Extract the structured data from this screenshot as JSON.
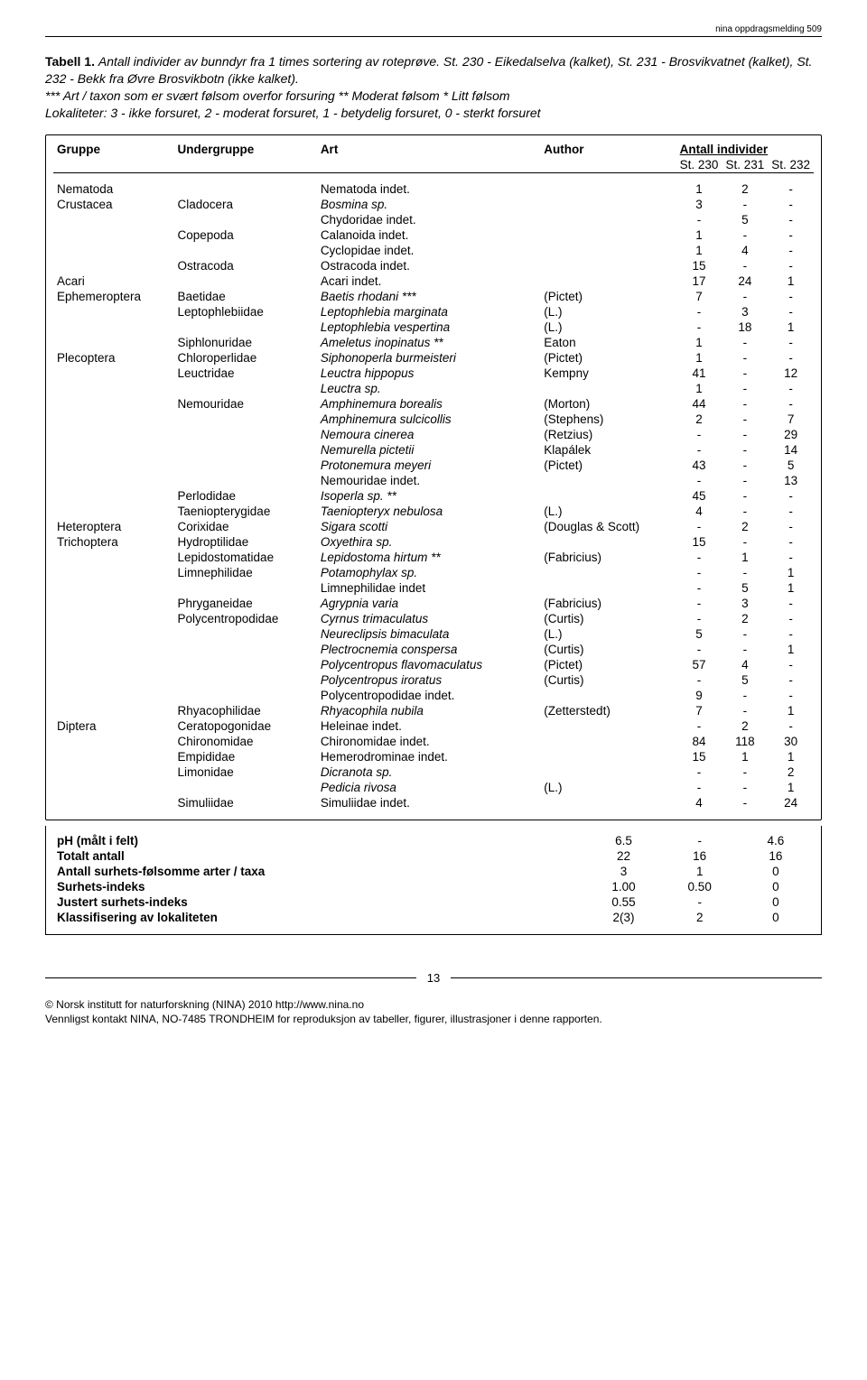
{
  "report_id": "nina oppdragsmelding 509",
  "caption": {
    "label": "Tabell 1.",
    "text_italic": "Antall individer av bunndyr fra 1 times sortering av roteprøve. St. 230 - Eikedalselva (kalket), St. 231 - Brosvikvatnet (kalket), St. 232 - Bekk fra Øvre Brosvikbotn (ikke kalket).",
    "note_italic": "*** Art / taxon som er svært følsom overfor forsuring  ** Moderat følsom  * Litt følsom",
    "loc_italic": "Lokaliteter: 3 - ikke forsuret, 2 - moderat forsuret, 1 - betydelig forsuret, 0 - sterkt forsuret"
  },
  "headers": {
    "gruppe": "Gruppe",
    "undergruppe": "Undergruppe",
    "art": "Art",
    "author": "Author",
    "antall": "Antall individer",
    "st230": "St. 230",
    "st231": "St. 231",
    "st232": "St. 232"
  },
  "rows": [
    {
      "g": "Nematoda",
      "u": "",
      "a": "Nematoda indet.",
      "ai": false,
      "au": "",
      "v": [
        "1",
        "2",
        "-"
      ]
    },
    {
      "g": "Crustacea",
      "u": "Cladocera",
      "a": "Bosmina sp.",
      "ai": true,
      "au": "",
      "v": [
        "3",
        "-",
        "-"
      ]
    },
    {
      "g": "",
      "u": "",
      "a": "Chydoridae indet.",
      "ai": false,
      "au": "",
      "v": [
        "-",
        "5",
        "-"
      ]
    },
    {
      "g": "",
      "u": "Copepoda",
      "a": "Calanoida indet.",
      "ai": false,
      "au": "",
      "v": [
        "1",
        "-",
        "-"
      ]
    },
    {
      "g": "",
      "u": "",
      "a": "Cyclopidae indet.",
      "ai": false,
      "au": "",
      "v": [
        "1",
        "4",
        "-"
      ]
    },
    {
      "g": "",
      "u": "Ostracoda",
      "a": "Ostracoda indet.",
      "ai": false,
      "au": "",
      "v": [
        "15",
        "-",
        "-"
      ]
    },
    {
      "g": "Acari",
      "u": "",
      "a": "Acari indet.",
      "ai": false,
      "au": "",
      "v": [
        "17",
        "24",
        "1"
      ]
    },
    {
      "g": "Ephemeroptera",
      "u": "Baetidae",
      "a": "Baetis rhodani ***",
      "ai": true,
      "au": "(Pictet)",
      "v": [
        "7",
        "-",
        "-"
      ]
    },
    {
      "g": "",
      "u": "Leptophlebiidae",
      "a": "Leptophlebia marginata",
      "ai": true,
      "au": "(L.)",
      "v": [
        "-",
        "3",
        "-"
      ]
    },
    {
      "g": "",
      "u": "",
      "a": "Leptophlebia vespertina",
      "ai": true,
      "au": "(L.)",
      "v": [
        "-",
        "18",
        "1"
      ]
    },
    {
      "g": "",
      "u": "Siphlonuridae",
      "a": "Ameletus inopinatus **",
      "ai": true,
      "au": "Eaton",
      "v": [
        "1",
        "-",
        "-"
      ]
    },
    {
      "g": "Plecoptera",
      "u": "Chloroperlidae",
      "a": "Siphonoperla burmeisteri",
      "ai": true,
      "au": "(Pictet)",
      "v": [
        "1",
        "-",
        "-"
      ]
    },
    {
      "g": "",
      "u": "Leuctridae",
      "a": "Leuctra hippopus",
      "ai": true,
      "au": "Kempny",
      "v": [
        "41",
        "-",
        "12"
      ]
    },
    {
      "g": "",
      "u": "",
      "a": "Leuctra sp.",
      "ai": true,
      "au": "",
      "v": [
        "1",
        "-",
        "-"
      ]
    },
    {
      "g": "",
      "u": "Nemouridae",
      "a": "Amphinemura borealis",
      "ai": true,
      "au": "(Morton)",
      "v": [
        "44",
        "-",
        "-"
      ]
    },
    {
      "g": "",
      "u": "",
      "a": "Amphinemura sulcicollis",
      "ai": true,
      "au": "(Stephens)",
      "v": [
        "2",
        "-",
        "7"
      ]
    },
    {
      "g": "",
      "u": "",
      "a": "Nemoura cinerea",
      "ai": true,
      "au": "(Retzius)",
      "v": [
        "-",
        "-",
        "29"
      ]
    },
    {
      "g": "",
      "u": "",
      "a": "Nemurella pictetii",
      "ai": true,
      "au": "Klapálek",
      "v": [
        "-",
        "-",
        "14"
      ]
    },
    {
      "g": "",
      "u": "",
      "a": "Protonemura meyeri",
      "ai": true,
      "au": "(Pictet)",
      "v": [
        "43",
        "-",
        "5"
      ]
    },
    {
      "g": "",
      "u": "",
      "a": "Nemouridae indet.",
      "ai": false,
      "au": "",
      "v": [
        "-",
        "-",
        "13"
      ]
    },
    {
      "g": "",
      "u": "Perlodidae",
      "a": "Isoperla sp. **",
      "ai": true,
      "au": "",
      "v": [
        "45",
        "-",
        "-"
      ]
    },
    {
      "g": "",
      "u": "Taeniopterygidae",
      "a": "Taeniopteryx nebulosa",
      "ai": true,
      "au": "(L.)",
      "v": [
        "4",
        "-",
        "-"
      ]
    },
    {
      "g": "Heteroptera",
      "u": "Corixidae",
      "a": "Sigara scotti",
      "ai": true,
      "au": "(Douglas & Scott)",
      "v": [
        "-",
        "2",
        "-"
      ]
    },
    {
      "g": "Trichoptera",
      "u": "Hydroptilidae",
      "a": "Oxyethira sp.",
      "ai": true,
      "au": "",
      "v": [
        "15",
        "-",
        "-"
      ]
    },
    {
      "g": "",
      "u": "Lepidostomatidae",
      "a": "Lepidostoma hirtum **",
      "ai": true,
      "au": "(Fabricius)",
      "v": [
        "-",
        "1",
        "-"
      ]
    },
    {
      "g": "",
      "u": "Limnephilidae",
      "a": "Potamophylax sp.",
      "ai": true,
      "au": "",
      "v": [
        "-",
        "-",
        "1"
      ]
    },
    {
      "g": "",
      "u": "",
      "a": "Limnephilidae indet",
      "ai": false,
      "au": "",
      "v": [
        "-",
        "5",
        "1"
      ]
    },
    {
      "g": "",
      "u": "Phryganeidae",
      "a": "Agrypnia varia",
      "ai": true,
      "au": "(Fabricius)",
      "v": [
        "-",
        "3",
        "-"
      ]
    },
    {
      "g": "",
      "u": "Polycentropodidae",
      "a": "Cyrnus trimaculatus",
      "ai": true,
      "au": "(Curtis)",
      "v": [
        "-",
        "2",
        "-"
      ]
    },
    {
      "g": "",
      "u": "",
      "a": "Neureclipsis bimaculata",
      "ai": true,
      "au": "(L.)",
      "v": [
        "5",
        "-",
        "-"
      ]
    },
    {
      "g": "",
      "u": "",
      "a": "Plectrocnemia conspersa",
      "ai": true,
      "au": "(Curtis)",
      "v": [
        "-",
        "-",
        "1"
      ]
    },
    {
      "g": "",
      "u": "",
      "a": "Polycentropus flavomaculatus",
      "ai": true,
      "au": "(Pictet)",
      "v": [
        "57",
        "4",
        "-"
      ]
    },
    {
      "g": "",
      "u": "",
      "a": "Polycentropus iroratus",
      "ai": true,
      "au": "(Curtis)",
      "v": [
        "-",
        "5",
        "-"
      ]
    },
    {
      "g": "",
      "u": "",
      "a": "Polycentropodidae indet.",
      "ai": false,
      "au": "",
      "v": [
        "9",
        "-",
        "-"
      ]
    },
    {
      "g": "",
      "u": "Rhyacophilidae",
      "a": "Rhyacophila nubila",
      "ai": true,
      "au": "(Zetterstedt)",
      "v": [
        "7",
        "-",
        "1"
      ]
    },
    {
      "g": "Diptera",
      "u": "Ceratopogonidae",
      "a": "Heleinae indet.",
      "ai": false,
      "au": "",
      "v": [
        "-",
        "2",
        "-"
      ]
    },
    {
      "g": "",
      "u": "Chironomidae",
      "a": "Chironomidae indet.",
      "ai": false,
      "au": "",
      "v": [
        "84",
        "118",
        "30"
      ]
    },
    {
      "g": "",
      "u": "Empididae",
      "a": "Hemerodrominae indet.",
      "ai": false,
      "au": "",
      "v": [
        "15",
        "1",
        "1"
      ]
    },
    {
      "g": "",
      "u": "Limonidae",
      "a": "Dicranota sp.",
      "ai": true,
      "au": "",
      "v": [
        "-",
        "-",
        "2"
      ]
    },
    {
      "g": "",
      "u": "",
      "a": "Pedicia rivosa",
      "ai": true,
      "au": "(L.)",
      "v": [
        "-",
        "-",
        "1"
      ]
    },
    {
      "g": "",
      "u": "Simuliidae",
      "a": "Simuliidae indet.",
      "ai": false,
      "au": "",
      "v": [
        "4",
        "-",
        "24"
      ]
    }
  ],
  "summary": [
    {
      "label": "pH (målt i felt)",
      "v": [
        "6.5",
        "-",
        "4.6"
      ]
    },
    {
      "label": "Totalt      antall",
      "v": [
        "22",
        "16",
        "16"
      ]
    },
    {
      "label": "Antall surhets-følsomme arter / taxa",
      "v": [
        "3",
        "1",
        "0"
      ]
    },
    {
      "label": "Surhets-indeks",
      "v": [
        "1.00",
        "0.50",
        "0"
      ]
    },
    {
      "label": "Justert surhets-indeks",
      "v": [
        "0.55",
        "-",
        "0"
      ]
    },
    {
      "label": "Klassifisering av lokaliteten",
      "v": [
        "2(3)",
        "2",
        "0"
      ]
    }
  ],
  "page_number": "13",
  "footer": {
    "l1": "© Norsk institutt for naturforskning (NINA) 2010 http://www.nina.no",
    "l2": "Vennligst kontakt NINA, NO-7485 TRONDHEIM for reproduksjon av tabeller, figurer, illustrasjoner i denne rapporten."
  }
}
